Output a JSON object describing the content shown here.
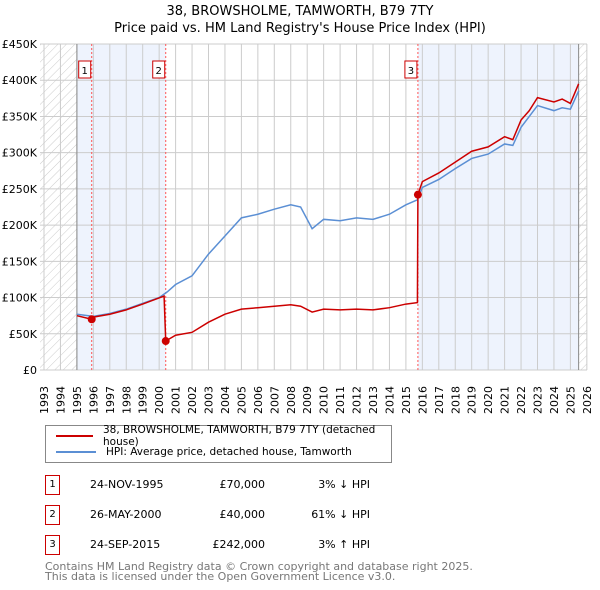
{
  "chart_data": {
    "type": "line",
    "title": "38, BROWSHOLME, TAMWORTH, B79 7TY",
    "subtitle": "Price paid vs. HM Land Registry's House Price Index (HPI)",
    "xlim": [
      1993,
      2026
    ],
    "ylim": [
      0,
      450000
    ],
    "x_ticks": [
      "1993",
      "1994",
      "1995",
      "1996",
      "1997",
      "1998",
      "1999",
      "2000",
      "2001",
      "2002",
      "2003",
      "2004",
      "2005",
      "2006",
      "2007",
      "2008",
      "2009",
      "2010",
      "2011",
      "2012",
      "2013",
      "2014",
      "2015",
      "2016",
      "2017",
      "2018",
      "2019",
      "2020",
      "2021",
      "2022",
      "2023",
      "2024",
      "2025",
      "2026"
    ],
    "y_ticks": [
      {
        "v": 0,
        "l": "£0"
      },
      {
        "v": 50000,
        "l": "£50K"
      },
      {
        "v": 100000,
        "l": "£100K"
      },
      {
        "v": 150000,
        "l": "£150K"
      },
      {
        "v": 200000,
        "l": "£200K"
      },
      {
        "v": 250000,
        "l": "£250K"
      },
      {
        "v": 300000,
        "l": "£300K"
      },
      {
        "v": 350000,
        "l": "£350K"
      },
      {
        "v": 400000,
        "l": "£400K"
      },
      {
        "v": 450000,
        "l": "£450K"
      }
    ],
    "grid": true,
    "series": [
      {
        "name": "38, BROWSHOLME, TAMWORTH, B79 7TY (detached house)",
        "color": "#cc0000",
        "x": [
          1995,
          1995.9,
          1996,
          1997,
          1998,
          1999,
          2000.3,
          2000.4,
          2001,
          2002,
          2003,
          2004,
          2005,
          2006,
          2007,
          2008,
          2008.6,
          2009.3,
          2010,
          2011,
          2012,
          2013,
          2014,
          2015,
          2015.7,
          2015.73,
          2016,
          2017,
          2018,
          2019,
          2020,
          2021,
          2021.5,
          2022,
          2022.5,
          2023,
          2024,
          2024.5,
          2025,
          2025.5
        ],
        "y": [
          75000,
          70000,
          73000,
          77000,
          83000,
          91000,
          102000,
          40000,
          48000,
          52000,
          66000,
          77000,
          84000,
          86000,
          88000,
          90000,
          88000,
          80000,
          84000,
          83000,
          84000,
          83000,
          86000,
          91000,
          93000,
          242000,
          260000,
          272000,
          287000,
          302000,
          308000,
          322000,
          318000,
          345000,
          358000,
          376000,
          370000,
          374000,
          368000,
          395000
        ]
      },
      {
        "name": "HPI: Average price, detached house, Tamworth",
        "color": "#5b8fd4",
        "x": [
          1995,
          1996,
          1997,
          1998,
          1999,
          2000,
          2000.5,
          2001,
          2002,
          2003,
          2004,
          2005,
          2006,
          2007,
          2008,
          2008.6,
          2009.3,
          2010,
          2011,
          2012,
          2013,
          2014,
          2015,
          2015.7,
          2016,
          2017,
          2018,
          2019,
          2020,
          2021,
          2021.5,
          2022,
          2022.5,
          2023,
          2024,
          2024.5,
          2025,
          2025.5
        ],
        "y": [
          77000,
          74000,
          78000,
          84000,
          92000,
          100000,
          108000,
          118000,
          130000,
          160000,
          185000,
          210000,
          215000,
          222000,
          228000,
          225000,
          195000,
          208000,
          206000,
          210000,
          208000,
          215000,
          228000,
          235000,
          252000,
          263000,
          278000,
          292000,
          298000,
          312000,
          310000,
          335000,
          350000,
          365000,
          358000,
          362000,
          360000,
          385000
        ]
      }
    ],
    "sales": [
      {
        "n": "1",
        "date": "24-NOV-1995",
        "x": 1995.9,
        "price": "£70,000",
        "v": 70000,
        "hpi": "3% ↓ HPI"
      },
      {
        "n": "2",
        "date": "26-MAY-2000",
        "x": 2000.4,
        "price": "£40,000",
        "v": 40000,
        "hpi": "61% ↓ HPI"
      },
      {
        "n": "3",
        "date": "24-SEP-2015",
        "x": 2015.73,
        "price": "£242,000",
        "v": 242000,
        "hpi": "3% ↑ HPI"
      }
    ]
  },
  "legend": {
    "red": "38, BROWSHOLME, TAMWORTH, B79 7TY (detached house)",
    "blue": "HPI: Average price, detached house, Tamworth"
  },
  "footer": {
    "line1": "Contains HM Land Registry data © Crown copyright and database right 2025.",
    "line2": "This data is licensed under the Open Government Licence v3.0."
  }
}
